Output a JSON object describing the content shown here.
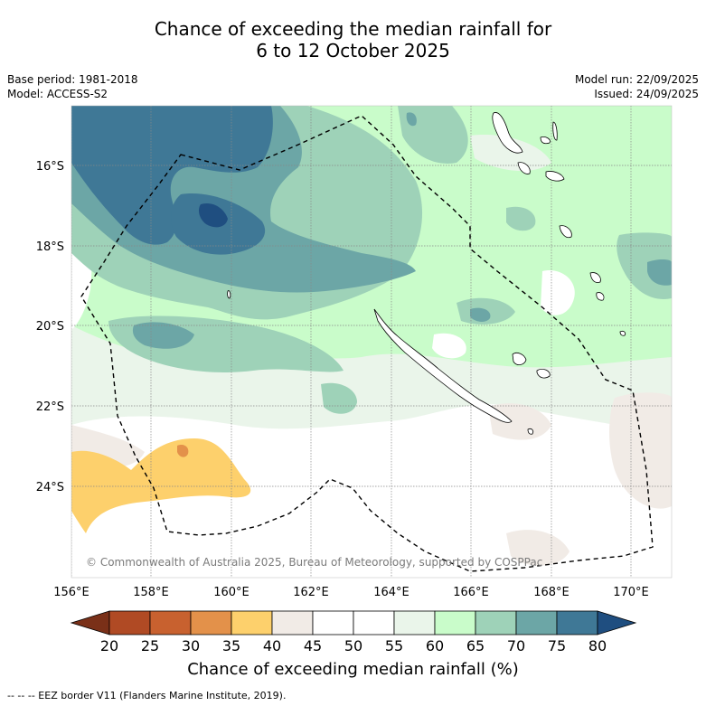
{
  "title": {
    "line1": "Chance of exceeding the median rainfall for",
    "line2": "6 to 12 October 2025"
  },
  "meta_left": {
    "base_period": "Base period: 1981-2018",
    "model": "Model: ACCESS-S2"
  },
  "meta_right": {
    "model_run": "Model run: 22/09/2025",
    "issued": "Issued: 24/09/2025"
  },
  "axes": {
    "lon_labels": [
      "156°E",
      "158°E",
      "160°E",
      "162°E",
      "164°E",
      "166°E",
      "168°E",
      "170°E"
    ],
    "lat_labels": [
      "16°S",
      "18°S",
      "20°S",
      "22°S",
      "24°S"
    ]
  },
  "copyright": "© Commonwealth of Australia 2025, Bureau of Meteorology, supported by COSPPac",
  "colorbar": {
    "ticks": [
      "20",
      "25",
      "30",
      "35",
      "40",
      "45",
      "50",
      "55",
      "60",
      "65",
      "70",
      "75",
      "80"
    ],
    "colors": [
      "#7a3018",
      "#b04a24",
      "#c8612f",
      "#e3914a",
      "#fdd06c",
      "#f1ebe6",
      "#ffffff",
      "#ffffff",
      "#eaf5ea",
      "#c9fcca",
      "#9ed2b8",
      "#6ca6a6",
      "#3f7896",
      "#1f4e80"
    ],
    "label": "Chance of exceeding median rainfall (%)"
  },
  "footnote": "--  --  -- EEZ border V11 (Flanders Marine Institute, 2019)."
}
